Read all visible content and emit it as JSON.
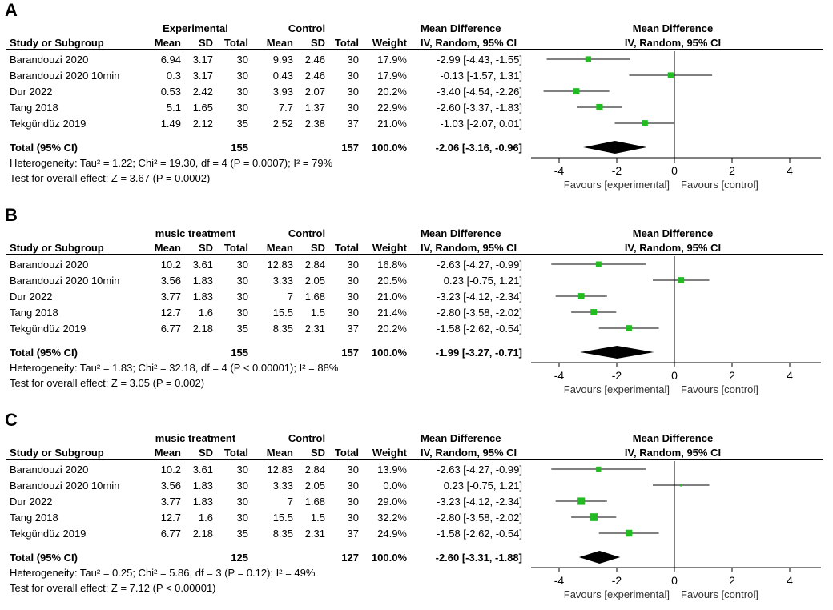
{
  "chart_data": [
    {
      "type": "forest",
      "panel": "A",
      "group1_label": "Experimental",
      "group2_label": "Control",
      "columns": {
        "study": "Study or Subgroup",
        "mean1": "Mean",
        "sd1": "SD",
        "total1": "Total",
        "mean2": "Mean",
        "sd2": "SD",
        "total2": "Total",
        "weight": "Weight",
        "md_title": "Mean Difference",
        "md_sub": "IV, Random, 95% CI",
        "plot_title": "Mean Difference",
        "plot_sub": "IV, Random, 95% CI"
      },
      "studies": [
        {
          "name": "Barandouzi 2020",
          "mean1": "6.94",
          "sd1": "3.17",
          "n1": "30",
          "mean2": "9.93",
          "sd2": "2.46",
          "n2": "30",
          "weight": "17.9%",
          "ci_text": "-2.99 [-4.43, -1.55]",
          "md": -2.99,
          "lo": -4.43,
          "hi": -1.55,
          "w": 17.9
        },
        {
          "name": "Barandouzi 2020 10min",
          "mean1": "0.3",
          "sd1": "3.17",
          "n1": "30",
          "mean2": "0.43",
          "sd2": "2.46",
          "n2": "30",
          "weight": "17.9%",
          "ci_text": "-0.13 [-1.57, 1.31]",
          "md": -0.13,
          "lo": -1.57,
          "hi": 1.31,
          "w": 17.9
        },
        {
          "name": "Dur 2022",
          "mean1": "0.53",
          "sd1": "2.42",
          "n1": "30",
          "mean2": "3.93",
          "sd2": "2.07",
          "n2": "30",
          "weight": "20.2%",
          "ci_text": "-3.40 [-4.54, -2.26]",
          "md": -3.4,
          "lo": -4.54,
          "hi": -2.26,
          "w": 20.2
        },
        {
          "name": "Tang 2018",
          "mean1": "5.1",
          "sd1": "1.65",
          "n1": "30",
          "mean2": "7.7",
          "sd2": "1.37",
          "n2": "30",
          "weight": "22.9%",
          "ci_text": "-2.60 [-3.37, -1.83]",
          "md": -2.6,
          "lo": -3.37,
          "hi": -1.83,
          "w": 22.9
        },
        {
          "name": "Tekgündüz 2019",
          "mean1": "1.49",
          "sd1": "2.12",
          "n1": "35",
          "mean2": "2.52",
          "sd2": "2.38",
          "n2": "37",
          "weight": "21.0%",
          "ci_text": "-1.03 [-2.07, 0.01]",
          "md": -1.03,
          "lo": -2.07,
          "hi": 0.01,
          "w": 21.0
        }
      ],
      "total": {
        "label": "Total (95% CI)",
        "n1": "155",
        "n2": "157",
        "weight": "100.0%",
        "ci_text": "-2.06 [-3.16, -0.96]",
        "md": -2.06,
        "lo": -3.16,
        "hi": -0.96
      },
      "heterogeneity": "Heterogeneity: Tau² = 1.22; Chi² = 19.30, df = 4 (P = 0.0007); I² = 79%",
      "overall_effect": "Test for overall effect: Z = 3.67 (P = 0.0002)",
      "xlim": [
        -5,
        5
      ],
      "ticks": [
        -4,
        -2,
        0,
        2,
        4
      ],
      "tick_labels": [
        "-4",
        "-2",
        "0",
        "2",
        "4"
      ],
      "favours_left": "Favours [experimental]",
      "favours_right": "Favours [control]",
      "marker_color": "#22bb22"
    },
    {
      "type": "forest",
      "panel": "B",
      "group1_label": "music treatment",
      "group2_label": "Control",
      "columns": {
        "study": "Study or Subgroup",
        "mean1": "Mean",
        "sd1": "SD",
        "total1": "Total",
        "mean2": "Mean",
        "sd2": "SD",
        "total2": "Total",
        "weight": "Weight",
        "md_title": "Mean Difference",
        "md_sub": "IV, Random, 95% CI",
        "plot_title": "Mean Difference",
        "plot_sub": "IV, Random, 95% CI"
      },
      "studies": [
        {
          "name": "Barandouzi 2020",
          "mean1": "10.2",
          "sd1": "3.61",
          "n1": "30",
          "mean2": "12.83",
          "sd2": "2.84",
          "n2": "30",
          "weight": "16.8%",
          "ci_text": "-2.63 [-4.27, -0.99]",
          "md": -2.63,
          "lo": -4.27,
          "hi": -0.99,
          "w": 16.8
        },
        {
          "name": "Barandouzi 2020 10min",
          "mean1": "3.56",
          "sd1": "1.83",
          "n1": "30",
          "mean2": "3.33",
          "sd2": "2.05",
          "n2": "30",
          "weight": "20.5%",
          "ci_text": "0.23 [-0.75, 1.21]",
          "md": 0.23,
          "lo": -0.75,
          "hi": 1.21,
          "w": 20.5
        },
        {
          "name": "Dur 2022",
          "mean1": "3.77",
          "sd1": "1.83",
          "n1": "30",
          "mean2": "7",
          "sd2": "1.68",
          "n2": "30",
          "weight": "21.0%",
          "ci_text": "-3.23 [-4.12, -2.34]",
          "md": -3.23,
          "lo": -4.12,
          "hi": -2.34,
          "w": 21.0
        },
        {
          "name": "Tang 2018",
          "mean1": "12.7",
          "sd1": "1.6",
          "n1": "30",
          "mean2": "15.5",
          "sd2": "1.5",
          "n2": "30",
          "weight": "21.4%",
          "ci_text": "-2.80 [-3.58, -2.02]",
          "md": -2.8,
          "lo": -3.58,
          "hi": -2.02,
          "w": 21.4
        },
        {
          "name": "Tekgündüz 2019",
          "mean1": "6.77",
          "sd1": "2.18",
          "n1": "35",
          "mean2": "8.35",
          "sd2": "2.31",
          "n2": "37",
          "weight": "20.2%",
          "ci_text": "-1.58 [-2.62, -0.54]",
          "md": -1.58,
          "lo": -2.62,
          "hi": -0.54,
          "w": 20.2
        }
      ],
      "total": {
        "label": "Total (95% CI)",
        "n1": "155",
        "n2": "157",
        "weight": "100.0%",
        "ci_text": "-1.99 [-3.27, -0.71]",
        "md": -1.99,
        "lo": -3.27,
        "hi": -0.71
      },
      "heterogeneity": "Heterogeneity: Tau² = 1.83; Chi² = 32.18, df = 4 (P < 0.00001); I² = 88%",
      "overall_effect": "Test for overall effect: Z = 3.05 (P = 0.002)",
      "xlim": [
        -5,
        5
      ],
      "ticks": [
        -4,
        -2,
        0,
        2,
        4
      ],
      "tick_labels": [
        "-4",
        "-2",
        "0",
        "2",
        "4"
      ],
      "favours_left": "Favours [experimental]",
      "favours_right": "Favours [control]",
      "marker_color": "#22bb22"
    },
    {
      "type": "forest",
      "panel": "C",
      "group1_label": "music treatment",
      "group2_label": "Control",
      "columns": {
        "study": "Study or Subgroup",
        "mean1": "Mean",
        "sd1": "SD",
        "total1": "Total",
        "mean2": "Mean",
        "sd2": "SD",
        "total2": "Total",
        "weight": "Weight",
        "md_title": "Mean Difference",
        "md_sub": "IV, Random, 95% CI",
        "plot_title": "Mean Difference",
        "plot_sub": "IV, Random, 95% CI"
      },
      "studies": [
        {
          "name": "Barandouzi 2020",
          "mean1": "10.2",
          "sd1": "3.61",
          "n1": "30",
          "mean2": "12.83",
          "sd2": "2.84",
          "n2": "30",
          "weight": "13.9%",
          "ci_text": "-2.63 [-4.27, -0.99]",
          "md": -2.63,
          "lo": -4.27,
          "hi": -0.99,
          "w": 13.9
        },
        {
          "name": "Barandouzi 2020 10min",
          "mean1": "3.56",
          "sd1": "1.83",
          "n1": "30",
          "mean2": "3.33",
          "sd2": "2.05",
          "n2": "30",
          "weight": "0.0%",
          "ci_text": "0.23 [-0.75, 1.21]",
          "md": 0.23,
          "lo": -0.75,
          "hi": 1.21,
          "w": 0.0
        },
        {
          "name": "Dur 2022",
          "mean1": "3.77",
          "sd1": "1.83",
          "n1": "30",
          "mean2": "7",
          "sd2": "1.68",
          "n2": "30",
          "weight": "29.0%",
          "ci_text": "-3.23 [-4.12, -2.34]",
          "md": -3.23,
          "lo": -4.12,
          "hi": -2.34,
          "w": 29.0
        },
        {
          "name": "Tang 2018",
          "mean1": "12.7",
          "sd1": "1.6",
          "n1": "30",
          "mean2": "15.5",
          "sd2": "1.5",
          "n2": "30",
          "weight": "32.2%",
          "ci_text": "-2.80 [-3.58, -2.02]",
          "md": -2.8,
          "lo": -3.58,
          "hi": -2.02,
          "w": 32.2
        },
        {
          "name": "Tekgündüz 2019",
          "mean1": "6.77",
          "sd1": "2.18",
          "n1": "35",
          "mean2": "8.35",
          "sd2": "2.31",
          "n2": "37",
          "weight": "24.9%",
          "ci_text": "-1.58 [-2.62, -0.54]",
          "md": -1.58,
          "lo": -2.62,
          "hi": -0.54,
          "w": 24.9
        }
      ],
      "total": {
        "label": "Total (95% CI)",
        "n1": "125",
        "n2": "127",
        "weight": "100.0%",
        "ci_text": "-2.60 [-3.31, -1.88]",
        "md": -2.6,
        "lo": -3.31,
        "hi": -1.88
      },
      "heterogeneity": "Heterogeneity: Tau² = 0.25; Chi² = 5.86, df = 3 (P = 0.12); I² = 49%",
      "overall_effect": "Test for overall effect: Z = 7.12 (P < 0.00001)",
      "xlim": [
        -5,
        5
      ],
      "ticks": [
        -4,
        -2,
        0,
        2,
        4
      ],
      "tick_labels": [
        "-4",
        "-2",
        "0",
        "2",
        "4"
      ],
      "favours_left": "Favours [experimental]",
      "favours_right": "Favours [control]",
      "marker_color": "#22bb22"
    }
  ]
}
